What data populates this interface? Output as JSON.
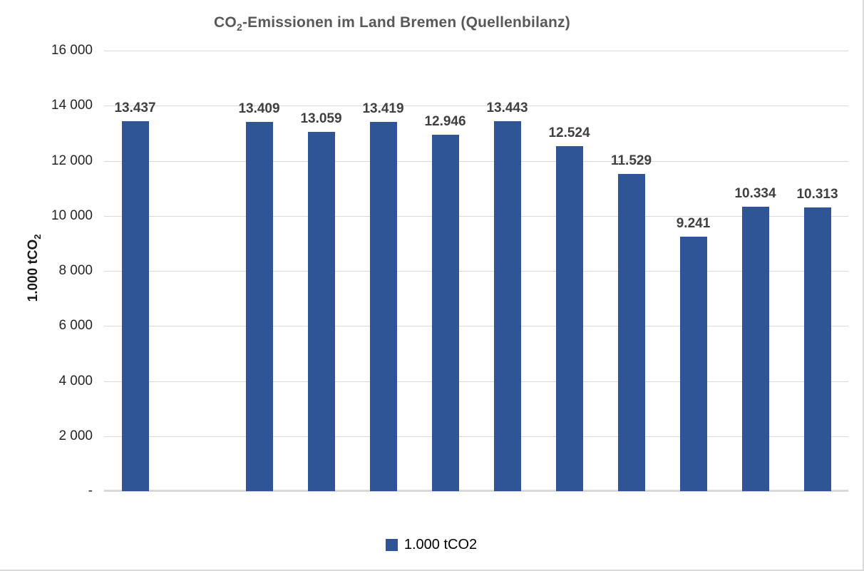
{
  "title": {
    "prefix": "CO",
    "subscript": "2",
    "rest": "-Emissionen im Land Bremen (Quellenbilanz)"
  },
  "y_axis": {
    "label_prefix": "1.000 tCO",
    "label_subscript": "2"
  },
  "legend": {
    "label": "1.000 tCO2"
  },
  "colors": {
    "bar": "#2f5597",
    "gridline": "#d9d9d9",
    "title_text": "#595959",
    "data_label_text": "#404040",
    "tick_label_text": "#262626"
  },
  "chart_data": {
    "type": "bar",
    "title": "CO2-Emissionen im Land Bremen (Quellenbilanz)",
    "ylabel": "1.000 tCO2",
    "ylim": [
      0,
      16000
    ],
    "y_tick_step": 2000,
    "y_tick_labels": [
      "16 000",
      "14 000",
      "12 000",
      "10 000",
      "8 000",
      "6 000",
      "4 000",
      "2 000",
      "-"
    ],
    "grid": true,
    "x_axis_labels_visible": false,
    "slots": 12,
    "values": [
      13437,
      null,
      13409,
      13059,
      13419,
      12946,
      13443,
      12524,
      11529,
      9241,
      10334,
      10313
    ],
    "value_labels": [
      "13.437",
      "",
      "13.409",
      "13.059",
      "13.419",
      "12.946",
      "13.443",
      "12.524",
      "11.529",
      "9.241",
      "10.334",
      "10.313"
    ],
    "series_name": "1.000 tCO2",
    "legend_position": "bottom"
  }
}
